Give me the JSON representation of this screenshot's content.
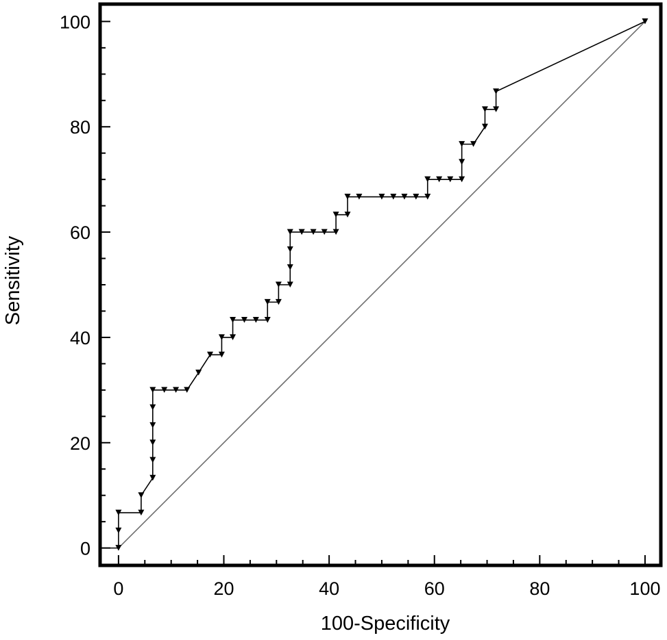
{
  "chart_data": {
    "type": "line",
    "title": "",
    "xlabel": "100-Specificity",
    "ylabel": "Sensitivity",
    "xlim": [
      -3.5,
      103
    ],
    "ylim": [
      -3.3,
      103.3
    ],
    "xticks": [
      0,
      20,
      40,
      60,
      80,
      100
    ],
    "yticks": [
      0,
      20,
      40,
      60,
      80,
      100
    ],
    "x_tick_labels": [
      "0",
      "20",
      "40",
      "60",
      "80",
      "100"
    ],
    "y_tick_labels": [
      "0",
      "20",
      "40",
      "60",
      "80",
      "100"
    ],
    "grid": false,
    "legend": "none",
    "series": [
      {
        "role": "roc-curve",
        "step_style": "vertical-then-horizontal",
        "marker": "triangle-down",
        "x": [
          0,
          0,
          0,
          4.3,
          4.3,
          6.5,
          6.5,
          6.5,
          6.5,
          6.5,
          6.5,
          8.7,
          10.9,
          13.0,
          15.2,
          17.4,
          19.6,
          19.6,
          21.7,
          21.7,
          23.9,
          26.1,
          28.3,
          28.3,
          30.4,
          30.4,
          32.6,
          32.6,
          32.6,
          32.6,
          34.8,
          37.0,
          39.1,
          41.3,
          41.3,
          43.5,
          43.5,
          45.7,
          50.0,
          52.2,
          54.3,
          56.5,
          58.7,
          58.7,
          60.9,
          63.0,
          65.2,
          65.2,
          65.2,
          67.4,
          69.6,
          69.6,
          71.7,
          71.7,
          100
        ],
        "y": [
          0,
          3.3,
          6.7,
          6.7,
          10.0,
          13.3,
          16.7,
          20.0,
          23.3,
          26.7,
          30.0,
          30.0,
          30.0,
          30.0,
          33.3,
          36.7,
          36.7,
          40.0,
          40.0,
          43.3,
          43.3,
          43.3,
          43.3,
          46.7,
          46.7,
          50.0,
          50.0,
          53.3,
          56.7,
          60.0,
          60.0,
          60.0,
          60.0,
          60.0,
          63.3,
          63.3,
          66.7,
          66.7,
          66.7,
          66.7,
          66.7,
          66.7,
          66.7,
          70.0,
          70.0,
          70.0,
          70.0,
          73.3,
          76.7,
          76.7,
          80.0,
          83.3,
          83.3,
          86.7,
          100
        ]
      },
      {
        "role": "reference-diagonal",
        "x": [
          0,
          100
        ],
        "y": [
          0,
          100
        ]
      }
    ]
  },
  "colors": {
    "curve": "#000000",
    "diagonal": "#6e6e6e",
    "frame": "#000000",
    "background": "#ffffff"
  }
}
